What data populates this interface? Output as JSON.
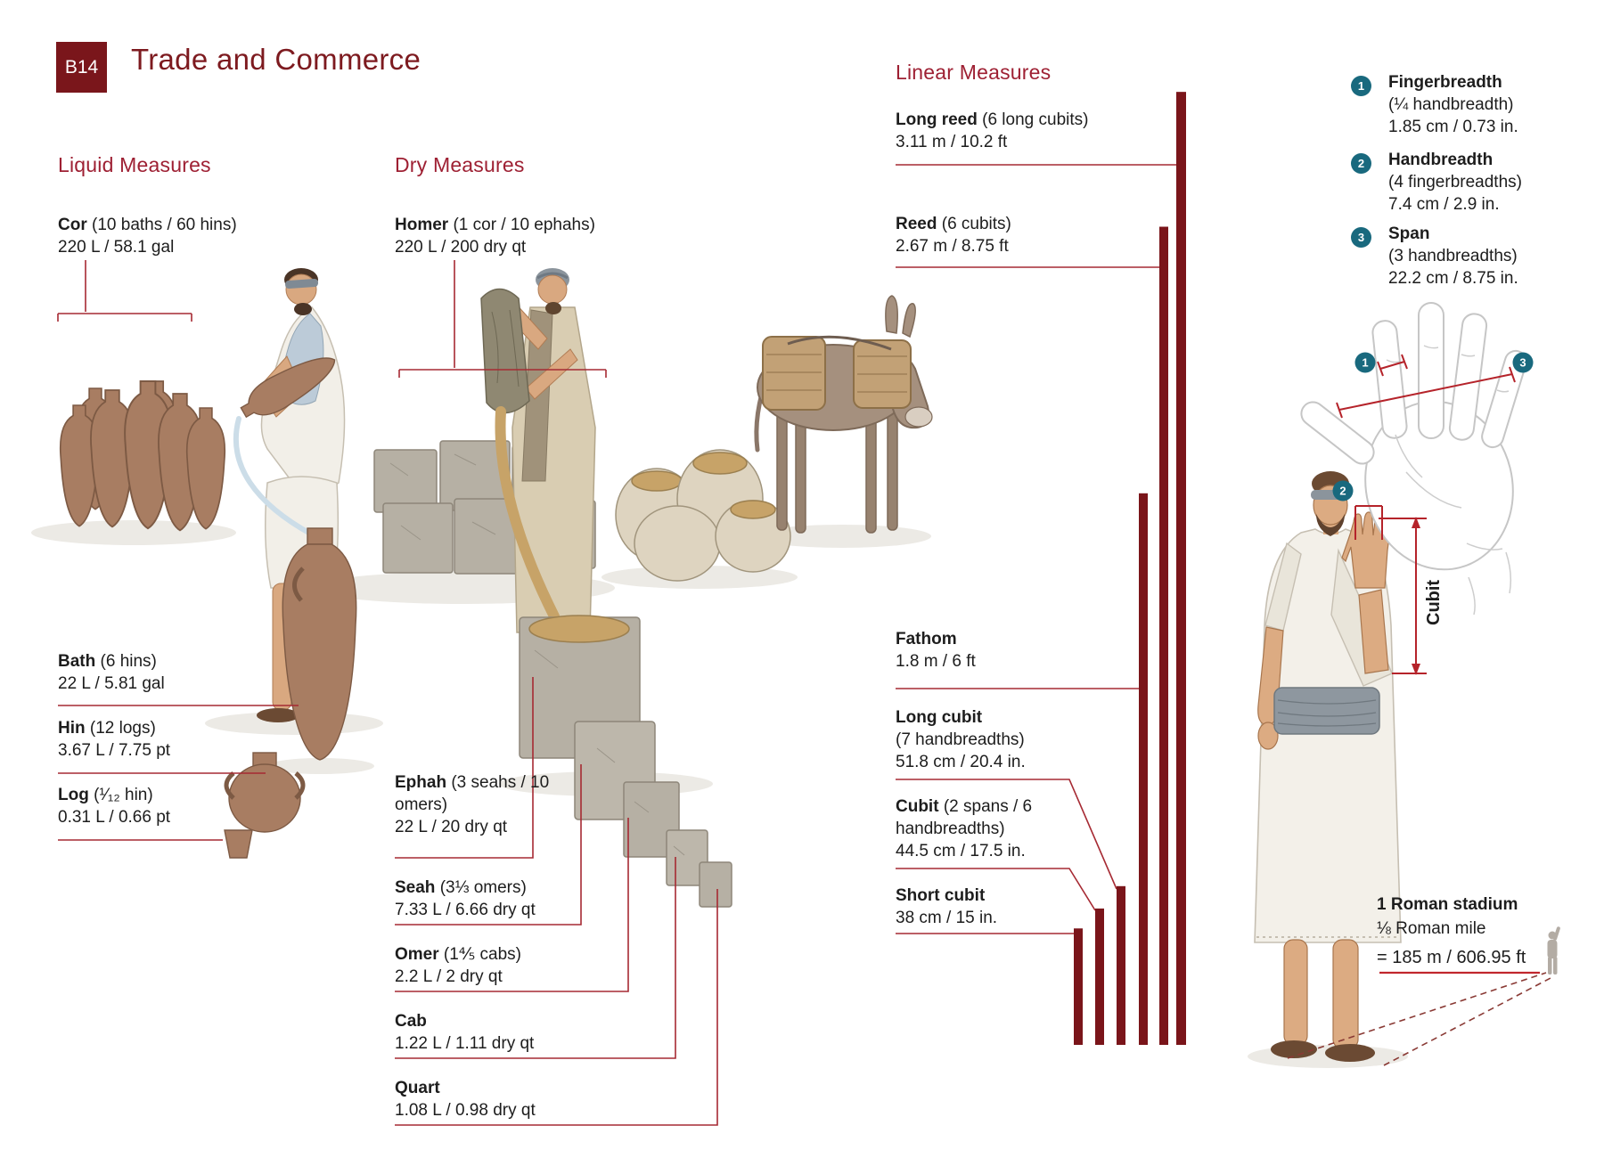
{
  "page": {
    "code": "B14",
    "title": "Trade and Commerce"
  },
  "colors": {
    "maroon": "#7a161b",
    "title_red": "#7d1a1f",
    "heading_red": "#9e2033",
    "leader_red": "#a62a33",
    "accent_red": "#c1272d",
    "teal": "#19697e",
    "bar_maroon": "#7a151a"
  },
  "liquid": {
    "heading": "Liquid Measures",
    "items": [
      {
        "name": "Cor",
        "detail": "(10 baths / 60 hins)",
        "value": "220 L / 58.1 gal"
      },
      {
        "name": "Bath",
        "detail": "(6 hins)",
        "value": "22 L / 5.81 gal"
      },
      {
        "name": "Hin",
        "detail": "(12 logs)",
        "value": "3.67 L / 7.75 pt"
      },
      {
        "name": "Log",
        "detail": "(¹⁄₁₂ hin)",
        "value": "0.31 L / 0.66 pt"
      }
    ]
  },
  "dry": {
    "heading": "Dry Measures",
    "items": [
      {
        "name": "Homer",
        "detail": "(1 cor / 10 ephahs)",
        "value": "220 L / 200 dry qt"
      },
      {
        "name": "Ephah",
        "detail": "(3 seahs / 10 omers)",
        "value": "22 L / 20 dry qt"
      },
      {
        "name": "Seah",
        "detail": "(3⅓ omers)",
        "value": "7.33 L / 6.66 dry qt"
      },
      {
        "name": "Omer",
        "detail": "(1⅘ cabs)",
        "value": "2.2 L / 2 dry qt"
      },
      {
        "name": "Cab",
        "detail": "",
        "value": "1.22 L / 1.11 dry qt"
      },
      {
        "name": "Quart",
        "detail": "",
        "value": "1.08 L / 0.98 dry qt"
      }
    ]
  },
  "linear": {
    "heading": "Linear Measures",
    "items": [
      {
        "name": "Long reed",
        "detail": "(6 long cubits)",
        "value": "3.11 m / 10.2 ft",
        "meters": 3.11
      },
      {
        "name": "Reed",
        "detail": "(6 cubits)",
        "value": "2.67 m / 8.75 ft",
        "meters": 2.67
      },
      {
        "name": "Fathom",
        "detail": "",
        "value": "1.8 m / 6 ft",
        "meters": 1.8
      },
      {
        "name": "Long cubit",
        "detail": "(7 handbreadths)",
        "value": "51.8 cm / 20.4 in.",
        "meters": 0.518
      },
      {
        "name": "Cubit",
        "detail": "(2 spans / 6 handbreadths)",
        "value": "44.5 cm / 17.5 in.",
        "meters": 0.445
      },
      {
        "name": "Short cubit",
        "detail": "",
        "value": "38 cm / 15 in.",
        "meters": 0.38
      }
    ]
  },
  "hand_measures": {
    "items": [
      {
        "num": "1",
        "name": "Fingerbreadth",
        "detail": "(¼ handbreadth)",
        "value": "1.85 cm / 0.73 in."
      },
      {
        "num": "2",
        "name": "Handbreadth",
        "detail": "(4 fingerbreadths)",
        "value": "7.4 cm / 2.9 in."
      },
      {
        "num": "3",
        "name": "Span",
        "detail": "(3 handbreadths)",
        "value": "22.2 cm / 8.75 in."
      }
    ]
  },
  "arm_diagram": {
    "cubit_label": "Cubit"
  },
  "stadium": {
    "line1": "1 Roman stadium",
    "line2": "⅛ Roman mile",
    "line3": "= 185 m / 606.95 ft"
  }
}
